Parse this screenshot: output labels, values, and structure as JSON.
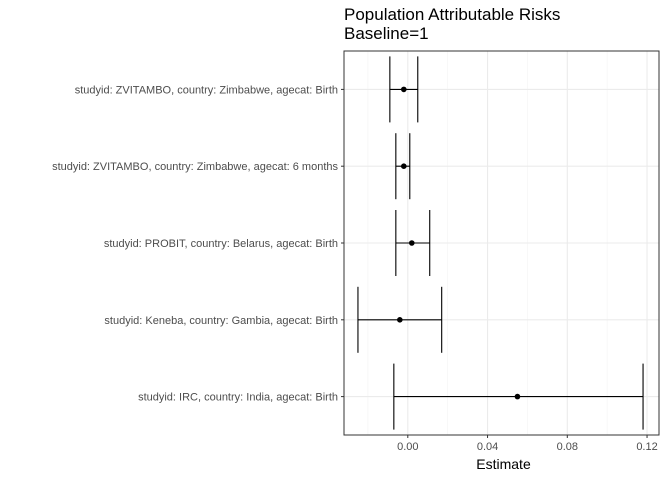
{
  "chart_data": {
    "type": "errorbar",
    "title": "Population Attributable Risks",
    "subtitle": "Baseline=1",
    "xlabel": "Estimate",
    "ylabel": "",
    "xlim": [
      -0.032,
      0.126
    ],
    "x_ticks": [
      0.0,
      0.04,
      0.08,
      0.12
    ],
    "x_tick_labels": [
      "0.00",
      "0.04",
      "0.08",
      "0.12"
    ],
    "grid": true,
    "legend": "none",
    "colors": {
      "mark": "#000000",
      "grid_major": "#ebebeb",
      "grid_minor": "#f5f5f5",
      "panel_border": "#333333"
    },
    "categories": [
      "studyid: ZVITAMBO, country: Zimbabwe, agecat: Birth",
      "studyid: ZVITAMBO, country: Zimbabwe, agecat: 6 months",
      "studyid: PROBIT, country: Belarus, agecat: Birth",
      "studyid: Keneba, country: Gambia, agecat: Birth",
      "studyid: IRC, country: India, agecat: Birth"
    ],
    "estimates": [
      -0.002,
      -0.002,
      0.002,
      -0.004,
      0.055
    ],
    "lower": [
      -0.009,
      -0.006,
      -0.006,
      -0.025,
      -0.007
    ],
    "upper": [
      0.005,
      0.001,
      0.011,
      0.017,
      0.118
    ]
  }
}
